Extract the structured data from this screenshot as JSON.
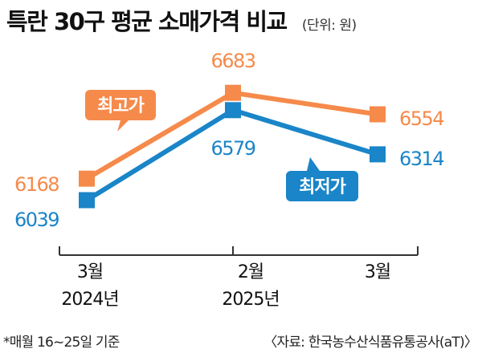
{
  "header": {
    "title": "특란 30구 평균 소매가격 비교",
    "unit": "(단위: 원)"
  },
  "footer": {
    "note": "*매월 16~25일 기준",
    "source": "〈자료: 한국농수산식품유통공사(aT)〉"
  },
  "colors": {
    "high": "#f58a4b",
    "low": "#1a85c8",
    "axis": "#333333"
  },
  "chart_data": {
    "type": "line",
    "categories": [
      [
        "3월",
        "2024년"
      ],
      [
        "2월",
        "2025년"
      ],
      [
        "3월",
        ""
      ]
    ],
    "series": [
      {
        "name": "최고가",
        "values": [
          6168,
          6683,
          6554
        ]
      },
      {
        "name": "최저가",
        "values": [
          6039,
          6579,
          6314
        ]
      }
    ],
    "title": "특란 30구 평균 소매가격 비교",
    "xlabel": "",
    "ylabel": "",
    "grid": false,
    "legend": "inline labels"
  }
}
